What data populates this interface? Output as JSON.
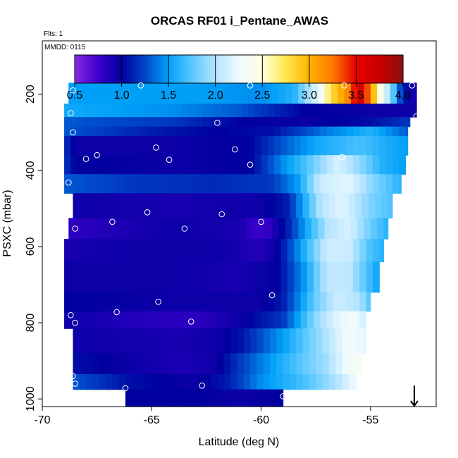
{
  "chart_data": {
    "type": "heatmap",
    "title": "ORCAS RF01 i_Pentane_AWAS",
    "subtitle_flts": "Flts: 1",
    "subtitle_mmdd": "MMDD: 0115",
    "xlabel": "Latitude (deg N)",
    "ylabel": "PSXC (mbar)",
    "xlim": [
      -70,
      -52
    ],
    "ylim": [
      1020,
      60
    ],
    "x_ticks": [
      -70,
      -65,
      -60,
      -55
    ],
    "y_ticks": [
      200,
      400,
      600,
      800,
      1000
    ],
    "colorbar": {
      "range": [
        0.5,
        4.0
      ],
      "ticks": [
        0.5,
        1.0,
        1.5,
        2.0,
        2.5,
        3.0,
        3.5,
        4.0
      ],
      "stops": [
        {
          "v": 0.5,
          "c": "#8a2be2"
        },
        {
          "v": 0.75,
          "c": "#3b00cc"
        },
        {
          "v": 1.0,
          "c": "#00009e"
        },
        {
          "v": 1.25,
          "c": "#0046c8"
        },
        {
          "v": 1.5,
          "c": "#00a0f8"
        },
        {
          "v": 1.75,
          "c": "#5ac8ff"
        },
        {
          "v": 2.0,
          "c": "#b4e4ff"
        },
        {
          "v": 2.25,
          "c": "#eefaff"
        },
        {
          "v": 2.5,
          "c": "#ffffe0"
        },
        {
          "v": 2.75,
          "c": "#ffe850"
        },
        {
          "v": 3.0,
          "c": "#ffb400"
        },
        {
          "v": 3.25,
          "c": "#ff7800"
        },
        {
          "v": 3.5,
          "c": "#e60000"
        },
        {
          "v": 3.75,
          "c": "#c80000"
        },
        {
          "v": 4.0,
          "c": "#8b1010"
        }
      ]
    },
    "rows": [
      {
        "p_top": 170,
        "p_bot": 225,
        "lat_start": -68.8,
        "lat_end": -52.9,
        "profile": [
          [
            -68.8,
            1.5
          ],
          [
            -63.0,
            1.5
          ],
          [
            -60.0,
            1.45
          ],
          [
            -58.5,
            1.6
          ],
          [
            -57.4,
            2.2
          ],
          [
            -56.8,
            2.8
          ],
          [
            -56.0,
            3.2
          ],
          [
            -55.5,
            3.7
          ],
          [
            -55.0,
            3.2
          ],
          [
            -54.6,
            2.5
          ],
          [
            -54.0,
            1.8
          ],
          [
            -53.6,
            1.2
          ],
          [
            -53.2,
            0.95
          ],
          [
            -52.9,
            0.9
          ]
        ]
      },
      {
        "p_top": 225,
        "p_bot": 260,
        "lat_start": -69.0,
        "lat_end": -52.9,
        "profile": [
          [
            -69.0,
            1.55
          ],
          [
            -64.0,
            1.45
          ],
          [
            -61.0,
            1.3
          ],
          [
            -58.0,
            1.0
          ],
          [
            -55.0,
            0.95
          ],
          [
            -52.9,
            0.95
          ]
        ]
      },
      {
        "p_top": 260,
        "p_bot": 285,
        "lat_start": -69.0,
        "lat_end": -53.2,
        "profile": [
          [
            -69.0,
            1.3
          ],
          [
            -64.0,
            1.2
          ],
          [
            -61.0,
            1.0
          ],
          [
            -58.0,
            0.95
          ],
          [
            -55.0,
            1.05
          ],
          [
            -53.2,
            1.2
          ]
        ]
      },
      {
        "p_top": 285,
        "p_bot": 310,
        "lat_start": -69.0,
        "lat_end": -53.3,
        "profile": [
          [
            -69.0,
            1.3
          ],
          [
            -65.0,
            1.1
          ],
          [
            -62.0,
            1.0
          ],
          [
            -59.5,
            1.05
          ],
          [
            -57.0,
            1.4
          ],
          [
            -55.0,
            1.6
          ],
          [
            -53.3,
            1.3
          ]
        ]
      },
      {
        "p_top": 310,
        "p_bot": 360,
        "lat_start": -69.0,
        "lat_end": -53.3,
        "profile": [
          [
            -69.0,
            1.2
          ],
          [
            -68.5,
            0.95
          ],
          [
            -64.0,
            0.95
          ],
          [
            -60.5,
            1.0
          ],
          [
            -59.0,
            1.3
          ],
          [
            -57.5,
            1.55
          ],
          [
            -55.5,
            1.7
          ],
          [
            -54.0,
            1.55
          ],
          [
            -53.3,
            1.5
          ]
        ]
      },
      {
        "p_top": 360,
        "p_bot": 410,
        "lat_start": -69.0,
        "lat_end": -53.4,
        "profile": [
          [
            -69.0,
            1.2
          ],
          [
            -68.5,
            1.0
          ],
          [
            -64.0,
            0.95
          ],
          [
            -60.5,
            1.0
          ],
          [
            -59.0,
            1.45
          ],
          [
            -57.8,
            1.75
          ],
          [
            -56.5,
            2.15
          ],
          [
            -55.5,
            1.9
          ],
          [
            -54.5,
            1.6
          ],
          [
            -53.4,
            1.5
          ]
        ]
      },
      {
        "p_top": 410,
        "p_bot": 460,
        "lat_start": -69.0,
        "lat_end": -53.6,
        "profile": [
          [
            -69.0,
            1.3
          ],
          [
            -66.0,
            1.2
          ],
          [
            -62.0,
            1.15
          ],
          [
            -59.5,
            1.2
          ],
          [
            -58.3,
            1.5
          ],
          [
            -57.3,
            2.1
          ],
          [
            -56.0,
            2.2
          ],
          [
            -55.0,
            1.9
          ],
          [
            -53.6,
            1.6
          ]
        ]
      },
      {
        "p_top": 460,
        "p_bot": 525,
        "lat_start": -68.6,
        "lat_end": -54.0,
        "profile": [
          [
            -68.6,
            0.95
          ],
          [
            -64.0,
            0.9
          ],
          [
            -60.0,
            0.95
          ],
          [
            -58.8,
            1.1
          ],
          [
            -57.3,
            2.0
          ],
          [
            -56.3,
            2.2
          ],
          [
            -55.0,
            1.85
          ],
          [
            -54.0,
            1.7
          ]
        ]
      },
      {
        "p_top": 525,
        "p_bot": 580,
        "lat_start": -68.8,
        "lat_end": -54.2,
        "profile": [
          [
            -68.8,
            0.8
          ],
          [
            -67.5,
            0.85
          ],
          [
            -64.0,
            0.95
          ],
          [
            -61.0,
            0.9
          ],
          [
            -60.2,
            0.75
          ],
          [
            -59.6,
            0.8
          ],
          [
            -58.8,
            1.1
          ],
          [
            -57.0,
            2.0
          ],
          [
            -56.0,
            2.15
          ],
          [
            -55.0,
            1.8
          ],
          [
            -54.2,
            1.6
          ]
        ]
      },
      {
        "p_top": 580,
        "p_bot": 640,
        "lat_start": -69.0,
        "lat_end": -54.4,
        "profile": [
          [
            -69.0,
            0.9
          ],
          [
            -66.0,
            0.95
          ],
          [
            -62.0,
            0.95
          ],
          [
            -60.0,
            0.85
          ],
          [
            -59.2,
            1.0
          ],
          [
            -58.0,
            1.6
          ],
          [
            -57.0,
            2.1
          ],
          [
            -56.0,
            2.1
          ],
          [
            -55.0,
            1.7
          ],
          [
            -54.4,
            1.6
          ]
        ]
      },
      {
        "p_top": 640,
        "p_bot": 720,
        "lat_start": -69.0,
        "lat_end": -54.6,
        "profile": [
          [
            -69.0,
            0.95
          ],
          [
            -64.0,
            0.95
          ],
          [
            -61.0,
            0.9
          ],
          [
            -59.2,
            1.0
          ],
          [
            -58.0,
            1.5
          ],
          [
            -57.0,
            2.05
          ],
          [
            -56.0,
            2.05
          ],
          [
            -55.0,
            1.65
          ],
          [
            -54.6,
            1.5
          ]
        ]
      },
      {
        "p_top": 720,
        "p_bot": 770,
        "lat_start": -69.0,
        "lat_end": -55.0,
        "profile": [
          [
            -69.0,
            1.0
          ],
          [
            -64.0,
            0.95
          ],
          [
            -60.0,
            0.95
          ],
          [
            -59.0,
            1.1
          ],
          [
            -57.5,
            1.8
          ],
          [
            -56.5,
            2.1
          ],
          [
            -55.5,
            2.0
          ],
          [
            -55.0,
            1.7
          ]
        ]
      },
      {
        "p_top": 770,
        "p_bot": 815,
        "lat_start": -69.0,
        "lat_end": -55.2,
        "profile": [
          [
            -69.0,
            0.95
          ],
          [
            -66.0,
            0.85
          ],
          [
            -63.0,
            0.82
          ],
          [
            -61.0,
            0.95
          ],
          [
            -59.0,
            1.2
          ],
          [
            -57.5,
            1.9
          ],
          [
            -56.5,
            2.2
          ],
          [
            -55.8,
            2.3
          ],
          [
            -55.2,
            2.1
          ]
        ]
      },
      {
        "p_top": 815,
        "p_bot": 880,
        "lat_start": -68.6,
        "lat_end": -55.2,
        "profile": [
          [
            -68.6,
            0.95
          ],
          [
            -64.0,
            0.9
          ],
          [
            -62.0,
            0.95
          ],
          [
            -61.0,
            1.05
          ],
          [
            -59.0,
            1.5
          ],
          [
            -57.0,
            2.0
          ],
          [
            -56.0,
            2.3
          ],
          [
            -55.2,
            2.2
          ]
        ]
      },
      {
        "p_top": 880,
        "p_bot": 935,
        "lat_start": -68.6,
        "lat_end": -55.4,
        "profile": [
          [
            -68.6,
            1.05
          ],
          [
            -66.0,
            0.95
          ],
          [
            -63.5,
            0.88
          ],
          [
            -62.0,
            0.95
          ],
          [
            -61.0,
            1.2
          ],
          [
            -59.0,
            1.6
          ],
          [
            -57.0,
            1.95
          ],
          [
            -56.0,
            2.3
          ],
          [
            -55.4,
            2.4
          ]
        ]
      },
      {
        "p_top": 935,
        "p_bot": 975,
        "lat_start": -68.6,
        "lat_end": -55.6,
        "profile": [
          [
            -68.6,
            1.3
          ],
          [
            -66.0,
            1.05
          ],
          [
            -63.0,
            0.95
          ],
          [
            -61.5,
            1.1
          ],
          [
            -60.0,
            1.45
          ],
          [
            -58.0,
            1.7
          ],
          [
            -56.5,
            2.0
          ],
          [
            -55.6,
            2.3
          ]
        ]
      },
      {
        "p_top": 975,
        "p_bot": 1020,
        "lat_start": -66.2,
        "lat_end": -59.0,
        "profile": [
          [
            -66.2,
            1.0
          ],
          [
            -63.0,
            1.0
          ],
          [
            -61.0,
            0.95
          ],
          [
            -59.0,
            1.0
          ]
        ]
      }
    ],
    "sample_points": [
      [
        -68.6,
        190
      ],
      [
        -65.5,
        177
      ],
      [
        -60.5,
        177
      ],
      [
        -56.2,
        177
      ],
      [
        -53.1,
        177
      ],
      [
        -68.7,
        250
      ],
      [
        -68.6,
        300
      ],
      [
        -62.0,
        275
      ],
      [
        -52.9,
        258
      ],
      [
        -68.0,
        370
      ],
      [
        -67.5,
        360
      ],
      [
        -64.8,
        340
      ],
      [
        -64.2,
        372
      ],
      [
        -61.2,
        345
      ],
      [
        -60.5,
        385
      ],
      [
        -56.3,
        365
      ],
      [
        -68.8,
        432
      ],
      [
        -68.5,
        553
      ],
      [
        -66.8,
        535
      ],
      [
        -65.2,
        510
      ],
      [
        -63.5,
        553
      ],
      [
        -61.8,
        515
      ],
      [
        -60.0,
        535
      ],
      [
        -59.5,
        728
      ],
      [
        -68.7,
        780
      ],
      [
        -68.5,
        800
      ],
      [
        -66.6,
        772
      ],
      [
        -64.7,
        745
      ],
      [
        -63.2,
        797
      ],
      [
        -68.6,
        940
      ],
      [
        -68.5,
        960
      ],
      [
        -66.2,
        972
      ],
      [
        -62.7,
        965
      ],
      [
        -59.0,
        993
      ]
    ],
    "arrow": {
      "x": -53.0,
      "p_from": 965,
      "p_to": 1020
    }
  }
}
